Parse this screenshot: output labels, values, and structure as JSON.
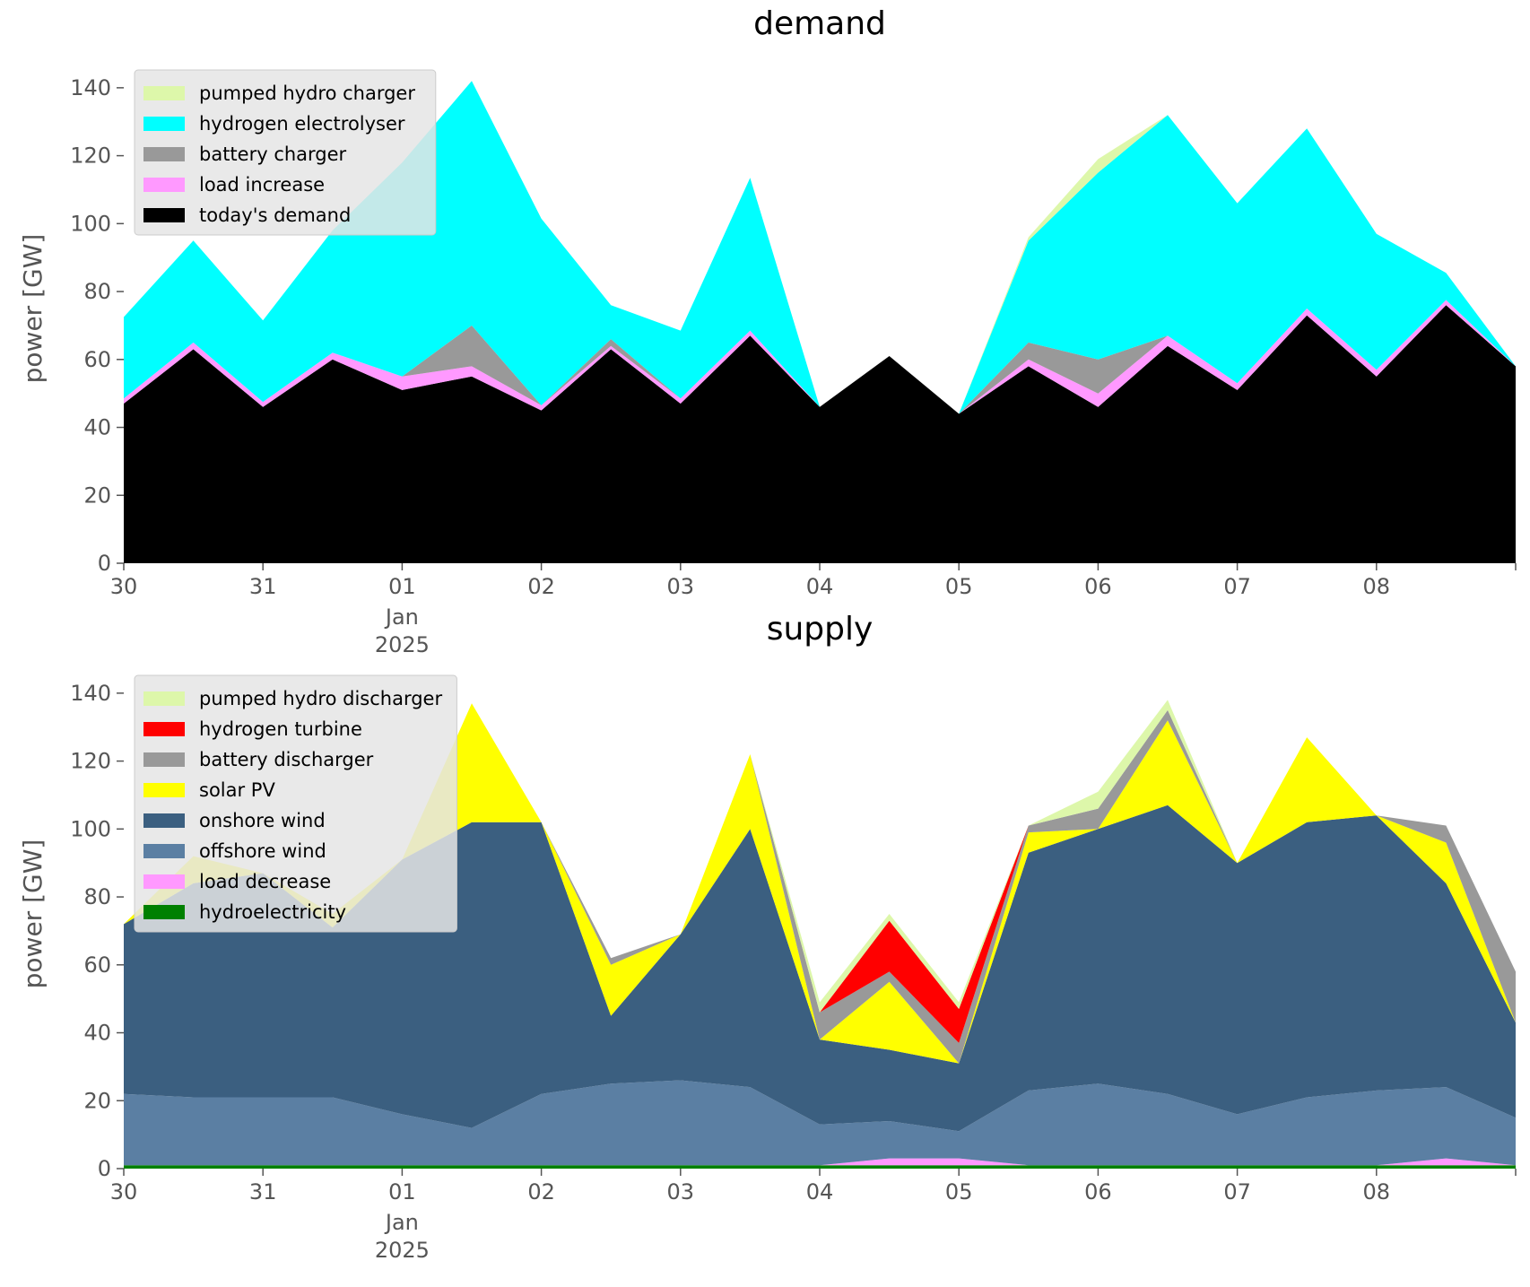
{
  "chart_data": [
    {
      "type": "area",
      "stacked": true,
      "title": "demand",
      "xlabel": "",
      "ylabel": "power [GW]",
      "x_domain": [
        "2024-12-30",
        "2025-01-09"
      ],
      "x_ticks": [
        {
          "x": "2024-12-30",
          "label": "30"
        },
        {
          "x": "2024-12-31",
          "label": "31"
        },
        {
          "x": "2025-01-01",
          "label": "01",
          "sub": [
            "Jan",
            "2025"
          ]
        },
        {
          "x": "2025-01-02",
          "label": "02"
        },
        {
          "x": "2025-01-03",
          "label": "03"
        },
        {
          "x": "2025-01-04",
          "label": "04"
        },
        {
          "x": "2025-01-05",
          "label": "05"
        },
        {
          "x": "2025-01-06",
          "label": "06"
        },
        {
          "x": "2025-01-07",
          "label": "07"
        },
        {
          "x": "2025-01-08",
          "label": "08"
        }
      ],
      "ylim": [
        0,
        150
      ],
      "y_ticks": [
        0,
        20,
        40,
        60,
        80,
        100,
        120,
        140
      ],
      "grid": false,
      "legend_position": "upper-left",
      "legend_order": [
        "pumped hydro charger",
        "hydrogen electrolyser",
        "battery charger",
        "load increase",
        "today's demand"
      ],
      "x": [
        "2024-12-30",
        "2024-12-30T12:00",
        "2024-12-31",
        "2024-12-31T12:00",
        "2025-01-01",
        "2025-01-01T12:00",
        "2025-01-02",
        "2025-01-02T12:00",
        "2025-01-03",
        "2025-01-03T12:00",
        "2025-01-04",
        "2025-01-04T12:00",
        "2025-01-05",
        "2025-01-05T12:00",
        "2025-01-06",
        "2025-01-06T12:00",
        "2025-01-07",
        "2025-01-07T12:00",
        "2025-01-08",
        "2025-01-08T12:00",
        "2025-01-09"
      ],
      "series": [
        {
          "name": "today's demand",
          "color": "#000000",
          "values": [
            47,
            63,
            46,
            60,
            51,
            55,
            45,
            63,
            47,
            67,
            46,
            61,
            44,
            58,
            46,
            64,
            51,
            73,
            55,
            76,
            58
          ]
        },
        {
          "name": "load increase",
          "color": "#ff99ff",
          "values": [
            1.5,
            2,
            1.5,
            2,
            4,
            3,
            1.5,
            1,
            1.5,
            1.5,
            0,
            0,
            0,
            2,
            4,
            3,
            2,
            2,
            2,
            1.5,
            0
          ]
        },
        {
          "name": "battery charger",
          "color": "#999999",
          "values": [
            0,
            0,
            0,
            0,
            0,
            12,
            0,
            2,
            0,
            0,
            0,
            0,
            0,
            5,
            10,
            0,
            0,
            0,
            0,
            0,
            0
          ]
        },
        {
          "name": "hydrogen electrolyser",
          "color": "#00ffff",
          "values": [
            24,
            30,
            24,
            36,
            63,
            72,
            55,
            10,
            20,
            45,
            0,
            0,
            0,
            30,
            55,
            65,
            53,
            53,
            40,
            8,
            0
          ]
        },
        {
          "name": "pumped hydro charger",
          "color": "#ddf7aa",
          "values": [
            0,
            0,
            0,
            0,
            0,
            0,
            0,
            0,
            0,
            0,
            0,
            0,
            0,
            1,
            4,
            0,
            0,
            0,
            0,
            0,
            0
          ]
        }
      ]
    },
    {
      "type": "area",
      "stacked": true,
      "title": "supply",
      "xlabel": "",
      "ylabel": "power [GW]",
      "x_domain": [
        "2024-12-30",
        "2025-01-09"
      ],
      "x_ticks": [
        {
          "x": "2024-12-30",
          "label": "30"
        },
        {
          "x": "2024-12-31",
          "label": "31"
        },
        {
          "x": "2025-01-01",
          "label": "01",
          "sub": [
            "Jan",
            "2025"
          ]
        },
        {
          "x": "2025-01-02",
          "label": "02"
        },
        {
          "x": "2025-01-03",
          "label": "03"
        },
        {
          "x": "2025-01-04",
          "label": "04"
        },
        {
          "x": "2025-01-05",
          "label": "05"
        },
        {
          "x": "2025-01-06",
          "label": "06"
        },
        {
          "x": "2025-01-07",
          "label": "07"
        },
        {
          "x": "2025-01-08",
          "label": "08"
        }
      ],
      "ylim": [
        0,
        150
      ],
      "y_ticks": [
        0,
        20,
        40,
        60,
        80,
        100,
        120,
        140
      ],
      "grid": false,
      "legend_position": "upper-left",
      "legend_order": [
        "pumped hydro discharger",
        "hydrogen turbine",
        "battery discharger",
        "solar PV",
        "onshore wind",
        "offshore wind",
        "load decrease",
        "hydroelectricity"
      ],
      "x": [
        "2024-12-30",
        "2024-12-30T12:00",
        "2024-12-31",
        "2024-12-31T12:00",
        "2025-01-01",
        "2025-01-01T12:00",
        "2025-01-02",
        "2025-01-02T12:00",
        "2025-01-03",
        "2025-01-03T12:00",
        "2025-01-04",
        "2025-01-04T12:00",
        "2025-01-05",
        "2025-01-05T12:00",
        "2025-01-06",
        "2025-01-06T12:00",
        "2025-01-07",
        "2025-01-07T12:00",
        "2025-01-08",
        "2025-01-08T12:00",
        "2025-01-09"
      ],
      "series": [
        {
          "name": "hydroelectricity",
          "color": "#008000",
          "values": [
            1,
            1,
            1,
            1,
            1,
            1,
            1,
            1,
            1,
            1,
            1,
            1,
            1,
            1,
            1,
            1,
            1,
            1,
            1,
            1,
            1
          ]
        },
        {
          "name": "load decrease",
          "color": "#ff99ff",
          "values": [
            0,
            0,
            0,
            0,
            0,
            0,
            0,
            0,
            0,
            0,
            0,
            2,
            2,
            0,
            0,
            0,
            0,
            0,
            0,
            2,
            0
          ]
        },
        {
          "name": "offshore wind",
          "color": "#5b7fa3",
          "values": [
            21,
            20,
            20,
            20,
            15,
            11,
            21,
            24,
            25,
            23,
            12,
            11,
            8,
            22,
            24,
            21,
            15,
            20,
            22,
            21,
            14
          ]
        },
        {
          "name": "onshore wind",
          "color": "#3b5f80",
          "values": [
            50,
            63,
            66,
            50,
            75,
            90,
            80,
            20,
            43,
            76,
            25,
            21,
            20,
            70,
            75,
            85,
            74,
            81,
            81,
            60,
            28
          ]
        },
        {
          "name": "solar PV",
          "color": "#ffff00",
          "values": [
            0,
            8,
            0,
            4,
            0,
            35,
            0,
            15,
            0,
            22,
            0,
            20,
            0,
            6,
            0,
            25,
            0,
            25,
            0,
            12,
            0
          ]
        },
        {
          "name": "battery discharger",
          "color": "#999999",
          "values": [
            0,
            0,
            0,
            0,
            0,
            0,
            0,
            2,
            0,
            0,
            8,
            3,
            6,
            2,
            6,
            3,
            0,
            0,
            0,
            5,
            15
          ]
        },
        {
          "name": "hydrogen turbine",
          "color": "#ff0000",
          "values": [
            0,
            0,
            0,
            0,
            0,
            0,
            0,
            0,
            0,
            0,
            0,
            15,
            10,
            0,
            0,
            0,
            0,
            0,
            0,
            0,
            0
          ]
        },
        {
          "name": "pumped hydro discharger",
          "color": "#ddf7aa",
          "values": [
            0,
            0,
            0,
            0,
            0,
            0,
            0,
            0,
            0,
            0,
            3,
            2,
            2,
            0,
            5,
            3,
            0,
            0,
            0,
            0,
            0
          ]
        }
      ]
    }
  ]
}
